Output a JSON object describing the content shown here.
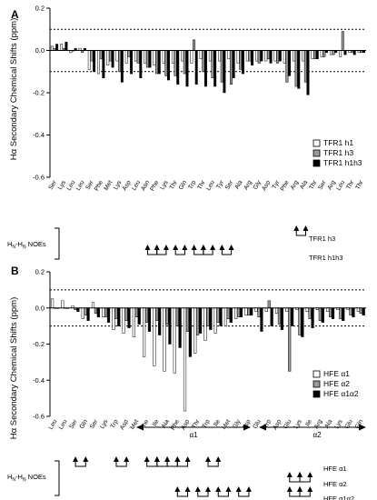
{
  "colors": {
    "s1": "#ffffff",
    "s2": "#9a9a9a",
    "s3": "#000000",
    "edge": "#000000"
  },
  "chart_data": [
    {
      "type": "bar",
      "panel": "A",
      "ylabel": "Hα Secondary Chemical Shifts (ppm)",
      "ylim": [
        -0.6,
        0.2
      ],
      "yticks": [
        0.2,
        0.0,
        -0.2,
        -0.4,
        -0.6
      ],
      "ytick_labels": [
        "0.2",
        "0.0",
        "-0.2",
        "-0.4",
        "-0.6"
      ],
      "threshold_lines": [
        0.1,
        -0.1
      ],
      "categories": [
        "Ser",
        "Lys",
        "Leu",
        "Leu",
        "Ser",
        "Phe",
        "Met",
        "Lys",
        "Asp",
        "Leu",
        "Asn",
        "Phe",
        "Lys",
        "Thr",
        "Gln",
        "Trp",
        "Thr",
        "Leu",
        "Tyr",
        "Ser",
        "Ala",
        "Arg",
        "Gly",
        "Asp",
        "Tyr",
        "Phe",
        "Arg",
        "Ala",
        "Thr",
        "Ser",
        "Arg",
        "Leu",
        "Thr",
        "Thr"
      ],
      "series": [
        {
          "name": "TFR1 h1",
          "values": [
            0.02,
            0.03,
            -0.01,
            0.01,
            -0.09,
            -0.11,
            -0.07,
            -0.05,
            -0.06,
            -0.05,
            -0.06,
            -0.07,
            -0.06,
            -0.06,
            -0.05,
            -0.06,
            -0.04,
            -0.05,
            -0.05,
            -0.04,
            -0.06,
            -0.05,
            -0.05,
            -0.05,
            -0.05,
            -0.06,
            -0.05,
            -0.05,
            -0.04,
            -0.03,
            -0.02,
            -0.03,
            -0.01,
            -0.01
          ]
        },
        {
          "name": "TFR1 h3",
          "values": [
            0.01,
            0.01,
            0.0,
            -0.01,
            -0.05,
            -0.04,
            -0.05,
            -0.1,
            -0.03,
            -0.06,
            -0.08,
            -0.11,
            -0.12,
            -0.12,
            -0.11,
            0.05,
            -0.1,
            -0.13,
            -0.15,
            -0.16,
            -0.09,
            -0.05,
            -0.06,
            -0.04,
            -0.06,
            -0.15,
            -0.17,
            -0.15,
            -0.04,
            -0.03,
            -0.02,
            0.09,
            -0.01,
            -0.01
          ]
        },
        {
          "name": "TFR1 h1h3",
          "values": [
            0.03,
            0.04,
            0.01,
            0.01,
            -0.1,
            -0.13,
            -0.08,
            -0.15,
            -0.11,
            -0.13,
            -0.08,
            -0.11,
            -0.14,
            -0.16,
            -0.17,
            -0.16,
            -0.17,
            -0.17,
            -0.2,
            -0.13,
            -0.11,
            -0.07,
            -0.05,
            -0.06,
            -0.05,
            -0.12,
            -0.18,
            -0.21,
            -0.04,
            -0.01,
            -0.01,
            -0.02,
            -0.02,
            -0.01
          ]
        }
      ],
      "legend_position": "lower-right"
    },
    {
      "type": "bar",
      "panel": "B",
      "ylabel": "Hα Secondary Chemical Shifts (ppm)",
      "ylim": [
        -0.6,
        0.2
      ],
      "yticks": [
        0.2,
        0.0,
        -0.2,
        -0.4,
        -0.6
      ],
      "ytick_labels": [
        "0.2",
        "0.0",
        "-0.2",
        "-0.4",
        "-0.6"
      ],
      "threshold_lines": [
        0.1,
        -0.1
      ],
      "categories": [
        "Leu",
        "Leu",
        "Ser",
        "Gln",
        "Ser",
        "Lys",
        "Trp",
        "Asp",
        "Met",
        "Phe",
        "Ile",
        "Ala",
        "Phe",
        "Asp",
        "Thr",
        "Trp",
        "Ile",
        "Met",
        "Gly",
        "Asp",
        "Glu",
        "Trp",
        "Asp",
        "Glu",
        "Lys",
        "Ile",
        "Arg",
        "Ala",
        "Lys",
        "Glu",
        "Gln"
      ],
      "series": [
        {
          "name": "HFE α1",
          "values": [
            0.05,
            0.04,
            0.01,
            -0.06,
            0.03,
            -0.05,
            -0.12,
            -0.14,
            -0.16,
            -0.27,
            -0.32,
            -0.35,
            -0.36,
            -0.57,
            -0.25,
            -0.18,
            -0.14,
            -0.1,
            -0.06,
            -0.04,
            -0.02,
            -0.02,
            -0.03,
            -0.02,
            -0.01,
            -0.02,
            -0.01,
            -0.02,
            -0.01,
            -0.01,
            -0.02
          ]
        },
        {
          "name": "HFE α2",
          "values": [
            0.0,
            0.0,
            -0.01,
            -0.04,
            -0.03,
            -0.05,
            -0.06,
            -0.07,
            -0.05,
            -0.08,
            -0.07,
            -0.09,
            -0.1,
            -0.13,
            -0.15,
            -0.1,
            -0.08,
            -0.06,
            -0.05,
            -0.04,
            -0.05,
            0.04,
            -0.09,
            -0.35,
            -0.15,
            -0.06,
            -0.07,
            -0.05,
            -0.06,
            -0.04,
            -0.03
          ]
        },
        {
          "name": "HFE α1α2",
          "values": [
            0.0,
            0.0,
            -0.02,
            -0.07,
            -0.05,
            -0.08,
            -0.1,
            -0.11,
            -0.09,
            -0.13,
            -0.15,
            -0.2,
            -0.22,
            -0.27,
            -0.14,
            -0.12,
            -0.1,
            -0.08,
            -0.05,
            -0.04,
            -0.13,
            -0.1,
            -0.12,
            -0.1,
            -0.16,
            -0.11,
            -0.08,
            -0.06,
            -0.07,
            -0.05,
            -0.04
          ]
        }
      ],
      "helix_labels": [
        "α1",
        "α2"
      ],
      "legend_position": "lower-right"
    }
  ],
  "noe": {
    "label": "HN-HN NOEs",
    "label_main": "H",
    "label_sub1": "N",
    "label_mid": "-H",
    "label_sub2": "N",
    "label_tail": " NOEs",
    "A": {
      "rows": [
        {
          "name": "TFR1 h3",
          "pairs": [
            [
              26,
              27
            ]
          ]
        },
        {
          "name": "TFR1 h1h3",
          "pairs": [
            [
              10,
              11
            ],
            [
              11,
              12
            ],
            [
              13,
              14
            ],
            [
              15,
              16
            ],
            [
              16,
              17
            ],
            [
              18,
              19
            ]
          ]
        }
      ]
    },
    "B": {
      "rows": [
        {
          "name": "HFE α1",
          "pairs": [
            [
              2,
              3
            ],
            [
              6,
              7
            ],
            [
              9,
              10
            ],
            [
              10,
              11
            ],
            [
              11,
              12
            ],
            [
              12,
              13
            ],
            [
              15,
              16
            ]
          ]
        },
        {
          "name": "HFE α2",
          "pairs": [
            [
              23,
              24
            ],
            [
              24,
              25
            ]
          ]
        },
        {
          "name": "HFE α1α2",
          "pairs": [
            [
              12,
              13
            ],
            [
              14,
              15
            ],
            [
              16,
              17
            ],
            [
              18,
              19
            ],
            [
              23,
              24
            ],
            [
              24,
              25
            ]
          ]
        }
      ]
    }
  }
}
